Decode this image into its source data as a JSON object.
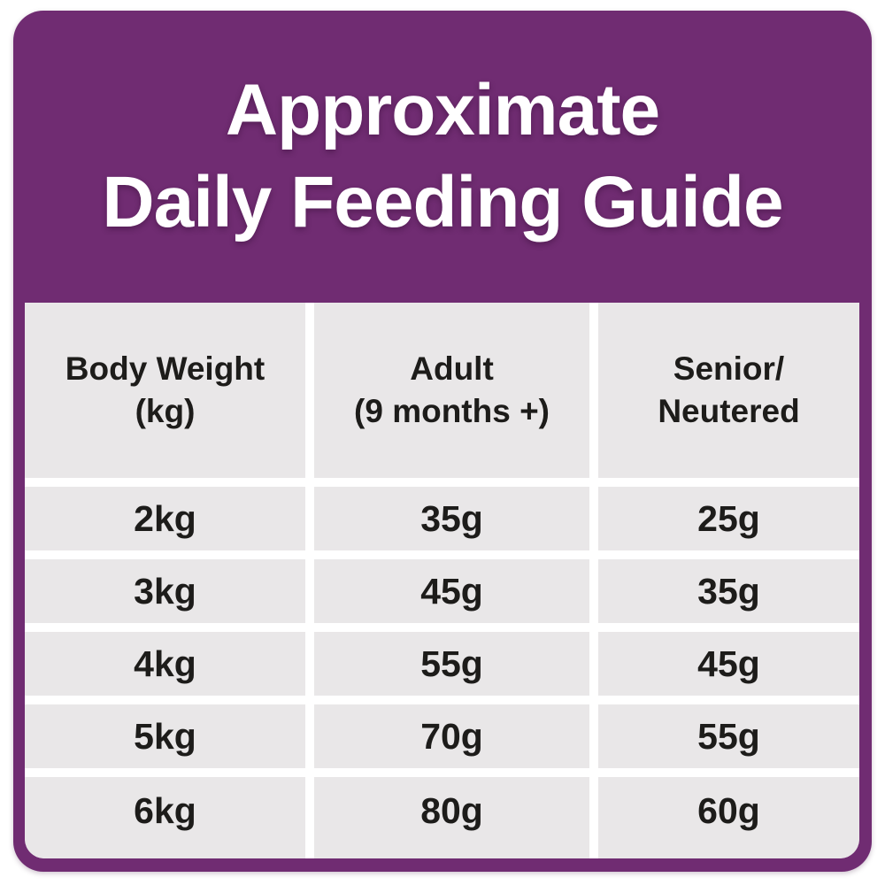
{
  "colors": {
    "page_bg": "#ffffff",
    "card_purple": "#702c72",
    "cell_gray": "#e9e7e8",
    "gap_white": "#ffffff",
    "title_white": "#ffffff",
    "text_dark": "#1d1c1a"
  },
  "header": {
    "title_line1": "Approximate",
    "title_line2": "Daily Feeding Guide"
  },
  "table": {
    "headers": [
      {
        "line1": "Body Weight",
        "line2": "(kg)"
      },
      {
        "line1": "Adult",
        "line2": "(9 months +)"
      },
      {
        "line1": "Senior/",
        "line2": "Neutered"
      }
    ],
    "rows": [
      {
        "weight": "2kg",
        "adult": "35g",
        "senior": "25g"
      },
      {
        "weight": "3kg",
        "adult": "45g",
        "senior": "35g"
      },
      {
        "weight": "4kg",
        "adult": "55g",
        "senior": "45g"
      },
      {
        "weight": "5kg",
        "adult": "70g",
        "senior": "55g"
      },
      {
        "weight": "6kg",
        "adult": "80g",
        "senior": "60g"
      }
    ]
  },
  "chart_data": {
    "type": "table",
    "title": "Approximate Daily Feeding Guide",
    "columns": [
      "Body Weight (kg)",
      "Adult (9 months +)",
      "Senior/Neutered"
    ],
    "rows": [
      [
        "2kg",
        "35g",
        "25g"
      ],
      [
        "3kg",
        "45g",
        "35g"
      ],
      [
        "4kg",
        "55g",
        "45g"
      ],
      [
        "5kg",
        "70g",
        "55g"
      ],
      [
        "6kg",
        "80g",
        "60g"
      ]
    ],
    "units": "grams per day",
    "layout": {
      "header_background": "#e9e7e8",
      "body_background": "#e9e7e8",
      "frame_color": "#702c72"
    }
  }
}
